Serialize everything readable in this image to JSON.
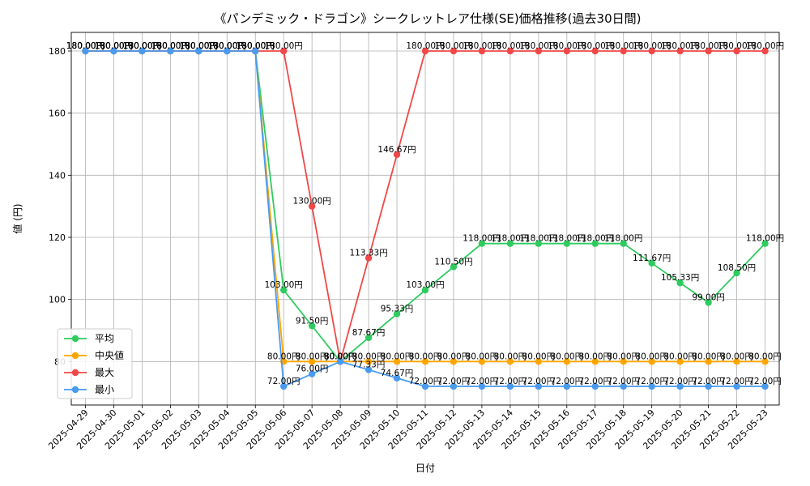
{
  "chart_data": {
    "type": "line",
    "title": "《パンデミック・ドラゴン》シークレットレア仕様(SE)価格推移(過去30日間)",
    "xlabel": "日付",
    "ylabel": "値 (円)",
    "ylim": [
      66,
      186
    ],
    "yticks": [
      80,
      100,
      120,
      140,
      160,
      180
    ],
    "grid": true,
    "legend_position": "bottom-left",
    "label_suffix": "円",
    "categories": [
      "2025-04-29",
      "2025-04-30",
      "2025-05-01",
      "2025-05-02",
      "2025-05-03",
      "2025-05-04",
      "2025-05-05",
      "2025-05-06",
      "2025-05-07",
      "2025-05-08",
      "2025-05-09",
      "2025-05-10",
      "2025-05-11",
      "2025-05-12",
      "2025-05-13",
      "2025-05-14",
      "2025-05-15",
      "2025-05-16",
      "2025-05-17",
      "2025-05-18",
      "2025-05-19",
      "2025-05-20",
      "2025-05-21",
      "2025-05-22",
      "2025-05-23"
    ],
    "series": [
      {
        "name": "平均",
        "color": "#2ecc5f",
        "values": [
          180,
          180,
          180,
          180,
          180,
          180,
          180,
          103,
          91.5,
          80,
          87.67,
          95.33,
          103,
          110.5,
          118,
          118,
          118,
          118,
          118,
          118,
          111.67,
          105.33,
          99,
          108.5,
          118
        ]
      },
      {
        "name": "中央値",
        "color": "#ffa500",
        "values": [
          180,
          180,
          180,
          180,
          180,
          180,
          180,
          80,
          80,
          80,
          80,
          80,
          80,
          80,
          80,
          80,
          80,
          80,
          80,
          80,
          80,
          80,
          80,
          80,
          80
        ]
      },
      {
        "name": "最大",
        "color": "#f04848",
        "values": [
          180,
          180,
          180,
          180,
          180,
          180,
          180,
          180,
          130,
          80,
          113.33,
          146.67,
          180,
          180,
          180,
          180,
          180,
          180,
          180,
          180,
          180,
          180,
          180,
          180,
          180
        ]
      },
      {
        "name": "最小",
        "color": "#4a9af0",
        "values": [
          180,
          180,
          180,
          180,
          180,
          180,
          180,
          72,
          76,
          80,
          77.33,
          74.67,
          72,
          72,
          72,
          72,
          72,
          72,
          72,
          72,
          72,
          72,
          72,
          72,
          72
        ]
      }
    ]
  }
}
